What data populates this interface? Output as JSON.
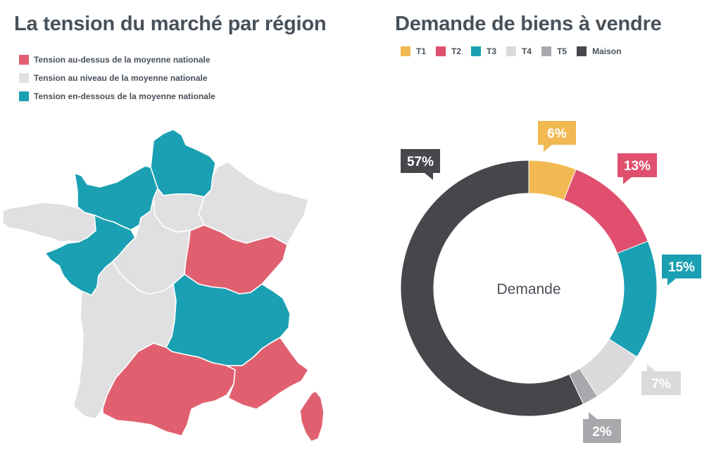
{
  "colors": {
    "above": "#e0606f",
    "level": "#e0e0e2",
    "below": "#1aa0b2",
    "border": "#ffffff"
  },
  "map": {
    "title": "La tension du marché par région",
    "legend": [
      {
        "key": "above",
        "label": "Tension au-dessus de la moyenne nationale"
      },
      {
        "key": "level",
        "label": "Tension au niveau de la moyenne nationale"
      },
      {
        "key": "below",
        "label": "Tension en-dessous de la moyenne nationale"
      }
    ],
    "regions": [
      {
        "name": "Hauts-de-France",
        "tension": "below"
      },
      {
        "name": "Normandie",
        "tension": "below"
      },
      {
        "name": "Île-de-France",
        "tension": "level"
      },
      {
        "name": "Grand Est",
        "tension": "level"
      },
      {
        "name": "Bretagne",
        "tension": "level"
      },
      {
        "name": "Pays de la Loire",
        "tension": "below"
      },
      {
        "name": "Centre-Val de Loire",
        "tension": "level"
      },
      {
        "name": "Bourgogne-Franche-Comté",
        "tension": "above"
      },
      {
        "name": "Nouvelle-Aquitaine",
        "tension": "level"
      },
      {
        "name": "Auvergne-Rhône-Alpes",
        "tension": "below"
      },
      {
        "name": "Occitanie",
        "tension": "above"
      },
      {
        "name": "Provence-Alpes-Côte d'Azur",
        "tension": "above"
      },
      {
        "name": "Corse",
        "tension": "above"
      }
    ]
  },
  "chart_data": {
    "type": "pie",
    "title": "Demande de biens à vendre",
    "center_label": "Demande",
    "donut": true,
    "categories": [
      "T1",
      "T2",
      "T3",
      "T4",
      "T5",
      "Maison"
    ],
    "values": [
      6,
      13,
      15,
      7,
      2,
      57
    ],
    "labels": [
      "6%",
      "13%",
      "15%",
      "7%",
      "2%",
      "57%"
    ],
    "colors": [
      "#f2b952",
      "#e0506e",
      "#1aa0b2",
      "#dadadc",
      "#a9a9ad",
      "#45474b"
    ],
    "label_text_colors": [
      "#ffffff",
      "#ffffff",
      "#ffffff",
      "#ffffff",
      "#ffffff",
      "#ffffff"
    ],
    "legend_position": "top"
  }
}
